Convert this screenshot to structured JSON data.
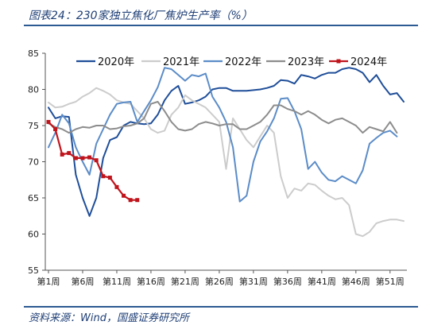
{
  "figure": {
    "title": "图表24：230家独立焦化厂焦炉生产率（%）",
    "source": "资料来源：Wind，国盛证券研究所"
  },
  "chart_data": {
    "type": "line",
    "title": "230家独立焦化厂焦炉生产率（%）",
    "xlabel": "",
    "ylabel": "",
    "ylim": [
      55,
      85
    ],
    "yticks": [
      55,
      60,
      65,
      70,
      75,
      80,
      85
    ],
    "x_count": 53,
    "xtick_labels": [
      "第1周",
      "第6周",
      "第11周",
      "第16周",
      "第21周",
      "第26周",
      "第31周",
      "第36周",
      "第41周",
      "第46周",
      "第51周"
    ],
    "xtick_weeks": [
      1,
      6,
      11,
      16,
      21,
      26,
      31,
      36,
      41,
      46,
      51
    ],
    "grid": false,
    "legend": "top",
    "series": [
      {
        "name": "2020年",
        "color": "#1f4e99",
        "marker": "none",
        "values": [
          77.5,
          76.0,
          76.3,
          76.2,
          68.2,
          65.0,
          62.5,
          65.0,
          70.5,
          73.0,
          73.4,
          75.0,
          75.5,
          75.3,
          75.2,
          75.3,
          76.5,
          78.5,
          79.8,
          80.5,
          78.0,
          78.2,
          78.5,
          79.0,
          80.0,
          80.2,
          80.2,
          79.8,
          79.8,
          79.8,
          79.9,
          80.0,
          80.2,
          80.5,
          81.3,
          81.2,
          80.8,
          82.0,
          81.8,
          81.5,
          82.0,
          82.3,
          82.3,
          82.8,
          83.0,
          82.8,
          82.3,
          81.0,
          82.0,
          80.5,
          79.3,
          79.5,
          78.3
        ]
      },
      {
        "name": "2021年",
        "color": "#cccccc",
        "marker": "none",
        "values": [
          78.2,
          77.5,
          77.6,
          78.0,
          78.3,
          79.0,
          79.5,
          80.2,
          79.8,
          79.3,
          78.5,
          78.2,
          78.0,
          77.0,
          76.0,
          74.5,
          74.0,
          74.3,
          76.5,
          77.5,
          79.2,
          78.5,
          78.0,
          77.5,
          76.5,
          75.5,
          69.0,
          76.0,
          74.5,
          73.0,
          72.0,
          73.5,
          75.0,
          74.0,
          68.0,
          65.0,
          66.3,
          66.0,
          67.0,
          66.8,
          66.0,
          65.3,
          64.8,
          65.0,
          64.0,
          60.0,
          59.7,
          60.3,
          61.5,
          61.8,
          62.0,
          62.0,
          61.8
        ]
      },
      {
        "name": "2022年",
        "color": "#5b8cc8",
        "marker": "none",
        "values": [
          72.0,
          74.0,
          76.5,
          75.3,
          72.0,
          70.0,
          68.2,
          72.5,
          74.5,
          76.5,
          78.0,
          78.2,
          78.3,
          75.5,
          77.0,
          78.5,
          80.3,
          83.0,
          82.8,
          82.0,
          81.2,
          82.0,
          81.8,
          82.2,
          79.0,
          77.5,
          75.5,
          72.0,
          64.5,
          65.3,
          70.0,
          72.8,
          74.2,
          76.0,
          78.7,
          78.8,
          77.0,
          74.5,
          69.0,
          70.0,
          68.5,
          67.5,
          67.3,
          68.0,
          67.5,
          67.0,
          68.8,
          72.5,
          73.3,
          74.0,
          74.3,
          73.5
        ]
      },
      {
        "name": "2023年",
        "color": "#8c8c8c",
        "marker": "none",
        "values": [
          75.3,
          74.8,
          74.5,
          74.0,
          74.5,
          74.8,
          74.7,
          75.0,
          75.0,
          74.5,
          74.6,
          74.9,
          75.0,
          75.3,
          76.0,
          78.0,
          78.3,
          77.0,
          75.5,
          74.5,
          74.3,
          74.5,
          75.2,
          75.5,
          75.3,
          75.0,
          75.2,
          75.2,
          74.5,
          74.5,
          75.0,
          75.5,
          76.5,
          77.8,
          77.8,
          77.3,
          77.0,
          76.5,
          77.0,
          76.5,
          75.8,
          75.3,
          75.8,
          76.0,
          75.5,
          75.0,
          74.0,
          74.8,
          74.5,
          74.2,
          75.5,
          74.0
        ]
      },
      {
        "name": "2024年",
        "color": "#c0141c",
        "marker": "square",
        "values": [
          75.5,
          74.5,
          71.0,
          71.2,
          70.5,
          70.5,
          70.6,
          70.2,
          68.0,
          67.8,
          66.5,
          65.3,
          64.7,
          64.7
        ]
      }
    ]
  }
}
